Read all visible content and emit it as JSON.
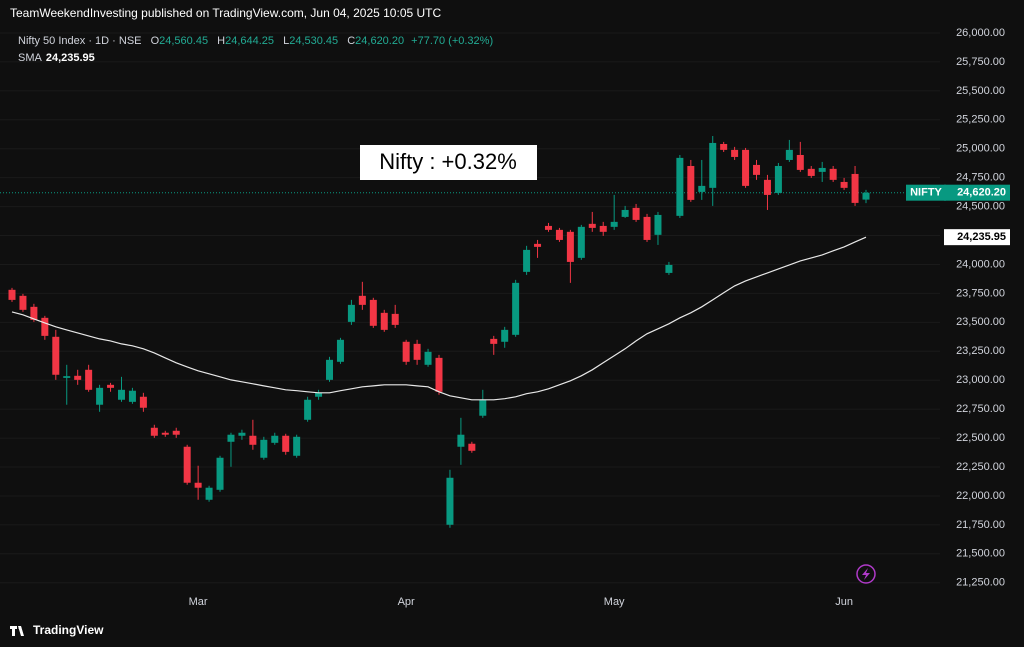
{
  "header": {
    "attribution": "TeamWeekendInvesting published on TradingView.com, Jun 04, 2025 10:05 UTC",
    "symbol": "Nifty 50 Index · 1D · NSE",
    "ohlc": [
      {
        "key": "O",
        "text": "24,560.45"
      },
      {
        "key": "H",
        "text": "24,644.25"
      },
      {
        "key": "L",
        "text": "24,530.45"
      },
      {
        "key": "C",
        "text": "24,620.20"
      }
    ],
    "change": "+77.70 (+0.32%)",
    "indicator": "SMA",
    "indicator_value": "24,235.95"
  },
  "footer": {
    "brand": "TradingView"
  },
  "chart_data": {
    "type": "candlestick",
    "annotation": "Nifty : +0.32%",
    "categories": [
      null,
      null,
      null,
      null,
      null,
      null,
      null,
      null,
      null,
      null,
      null,
      null,
      null,
      null,
      null,
      null,
      null,
      "Mar",
      null,
      null,
      null,
      null,
      null,
      null,
      null,
      null,
      null,
      null,
      null,
      null,
      null,
      null,
      null,
      null,
      null,
      null,
      "Apr",
      null,
      null,
      null,
      null,
      null,
      null,
      null,
      null,
      null,
      null,
      null,
      null,
      null,
      null,
      null,
      null,
      null,
      null,
      "May",
      null,
      null,
      null,
      null,
      null,
      null,
      null,
      null,
      null,
      null,
      null,
      null,
      null,
      null,
      null,
      null,
      null,
      null,
      null,
      null,
      "Jun",
      null,
      null
    ],
    "open": [
      23781,
      23729,
      23634,
      23539,
      23375,
      23020,
      23038,
      23090,
      22788,
      22960,
      22831,
      22813,
      22857,
      22589,
      22546,
      22563,
      22425,
      22114,
      21967,
      22053,
      22468,
      22520,
      22520,
      22330,
      22459,
      22520,
      22347,
      22658,
      22857,
      23003,
      23159,
      23504,
      23729,
      23694,
      23582,
      23573,
      23332,
      23314,
      23133,
      23193,
      21751,
      22425,
      22451,
      22693,
      23357,
      23332,
      23392,
      23936,
      24178,
      24333,
      24299,
      24282,
      24057,
      24351,
      24333,
      24325,
      24411,
      24489,
      24411,
      24256,
      23927,
      24420,
      24851,
      24627,
      24662,
      25041,
      24990,
      24990,
      24860,
      24731,
      24618,
      24903,
      24946,
      24826,
      24800,
      24826,
      24713,
      24782,
      24560.45
    ],
    "high": [
      23798,
      23746,
      23660,
      23556,
      23435,
      23133,
      23090,
      23133,
      22960,
      22977,
      23029,
      22934,
      22891,
      22615,
      22563,
      22589,
      22442,
      22261,
      22088,
      22347,
      22546,
      22572,
      22658,
      22511,
      22546,
      22537,
      22529,
      22857,
      22917,
      23202,
      23366,
      23694,
      23850,
      23712,
      23608,
      23651,
      23349,
      23349,
      23271,
      23219,
      22226,
      22675,
      22468,
      22917,
      23383,
      23461,
      23867,
      24161,
      24212,
      24359,
      24316,
      24299,
      24342,
      24454,
      24368,
      24601,
      24506,
      24523,
      24437,
      24454,
      24022,
      24946,
      24903,
      24903,
      25110,
      25059,
      25016,
      25007,
      24903,
      24774,
      24877,
      25076,
      25059,
      24851,
      24886,
      24851,
      24748,
      24851,
      24644.25
    ],
    "low": [
      23677,
      23591,
      23504,
      23349,
      23003,
      22788,
      22960,
      22900,
      22727,
      22900,
      22813,
      22796,
      22727,
      22502,
      22511,
      22502,
      22097,
      21967,
      21950,
      22036,
      22252,
      22485,
      22399,
      22313,
      22442,
      22356,
      22330,
      22641,
      22831,
      22986,
      23141,
      23478,
      23608,
      23452,
      23418,
      23452,
      23133,
      23133,
      23116,
      22874,
      21725,
      22269,
      22373,
      22675,
      23219,
      23280,
      23375,
      23910,
      24057,
      24282,
      24195,
      23841,
      24040,
      24282,
      24247,
      24299,
      24402,
      24368,
      24195,
      24169,
      23910,
      24402,
      24541,
      24558,
      24506,
      24972,
      24903,
      24662,
      24731,
      24471,
      24601,
      24886,
      24800,
      24748,
      24713,
      24713,
      24644,
      24506,
      24530.45
    ],
    "close": [
      23694,
      23608,
      23521,
      23383,
      23047,
      23035,
      23003,
      22917,
      22934,
      22934,
      22917,
      22909,
      22762,
      22520,
      22529,
      22529,
      22114,
      22071,
      22071,
      22330,
      22529,
      22546,
      22442,
      22485,
      22520,
      22381,
      22511,
      22831,
      22891,
      23176,
      23349,
      23651,
      23651,
      23470,
      23435,
      23478,
      23159,
      23176,
      23245,
      22900,
      22157,
      22529,
      22390,
      22831,
      23314,
      23435,
      23841,
      24126,
      24152,
      24299,
      24212,
      24022,
      24325,
      24316,
      24282,
      24368,
      24471,
      24385,
      24212,
      24428,
      23996,
      24921,
      24558,
      24679,
      25050,
      24990,
      24929,
      24679,
      24774,
      24601,
      24851,
      24990,
      24817,
      24765,
      24834,
      24731,
      24662,
      24532,
      24620.2
    ],
    "up_color": "#089981",
    "down_color": "#f23645",
    "sma": {
      "name": "SMA",
      "color": "#e8e8e8",
      "values": [
        23590,
        23565,
        23530,
        23495,
        23461,
        23435,
        23409,
        23383,
        23357,
        23340,
        23314,
        23297,
        23271,
        23236,
        23193,
        23150,
        23115,
        23081,
        23055,
        23029,
        23003,
        22986,
        22969,
        22951,
        22934,
        22917,
        22909,
        22900,
        22891,
        22891,
        22909,
        22926,
        22943,
        22951,
        22960,
        22960,
        22960,
        22951,
        22943,
        22900,
        22865,
        22848,
        22831,
        22831,
        22831,
        22840,
        22857,
        22883,
        22900,
        22926,
        22960,
        22995,
        23038,
        23090,
        23150,
        23211,
        23271,
        23340,
        23401,
        23444,
        23487,
        23539,
        23582,
        23634,
        23694,
        23755,
        23815,
        23858,
        23893,
        23927,
        23962,
        23996,
        24031,
        24057,
        24083,
        24118,
        24152,
        24195,
        24235.95
      ]
    },
    "price_tags": [
      {
        "name": "NIFTY",
        "value": 24620.2,
        "label": "24,620.20",
        "color": "#089981"
      },
      {
        "value": 24235.95,
        "label": "24,235.95",
        "color": "#ffffff"
      }
    ],
    "ylim": [
      21170,
      26095
    ],
    "yticks": [
      {
        "value": 21250,
        "label": "21,250.00"
      },
      {
        "value": 21500,
        "label": "21,500.00"
      },
      {
        "value": 21750,
        "label": "21,750.00"
      },
      {
        "value": 22000,
        "label": "22,000.00"
      },
      {
        "value": 22250,
        "label": "22,250.00"
      },
      {
        "value": 22500,
        "label": "22,500.00"
      },
      {
        "value": 22750,
        "label": "22,750.00"
      },
      {
        "value": 23000,
        "label": "23,000.00"
      },
      {
        "value": 23250,
        "label": "23,250.00"
      },
      {
        "value": 23500,
        "label": "23,500.00"
      },
      {
        "value": 23750,
        "label": "23,750.00"
      },
      {
        "value": 24000,
        "label": "24,000.00"
      },
      {
        "value": 24250,
        "label": "24,250.00"
      },
      {
        "value": 24500,
        "label": "24,500.00"
      },
      {
        "value": 24750,
        "label": "24,750.00"
      },
      {
        "value": 25000,
        "label": "25,000.00"
      },
      {
        "value": 25250,
        "label": "25,250.00"
      },
      {
        "value": 25500,
        "label": "25,500.00"
      },
      {
        "value": 25750,
        "label": "25,750.00"
      },
      {
        "value": 26000,
        "label": "26,000.00"
      }
    ],
    "grid": true
  }
}
